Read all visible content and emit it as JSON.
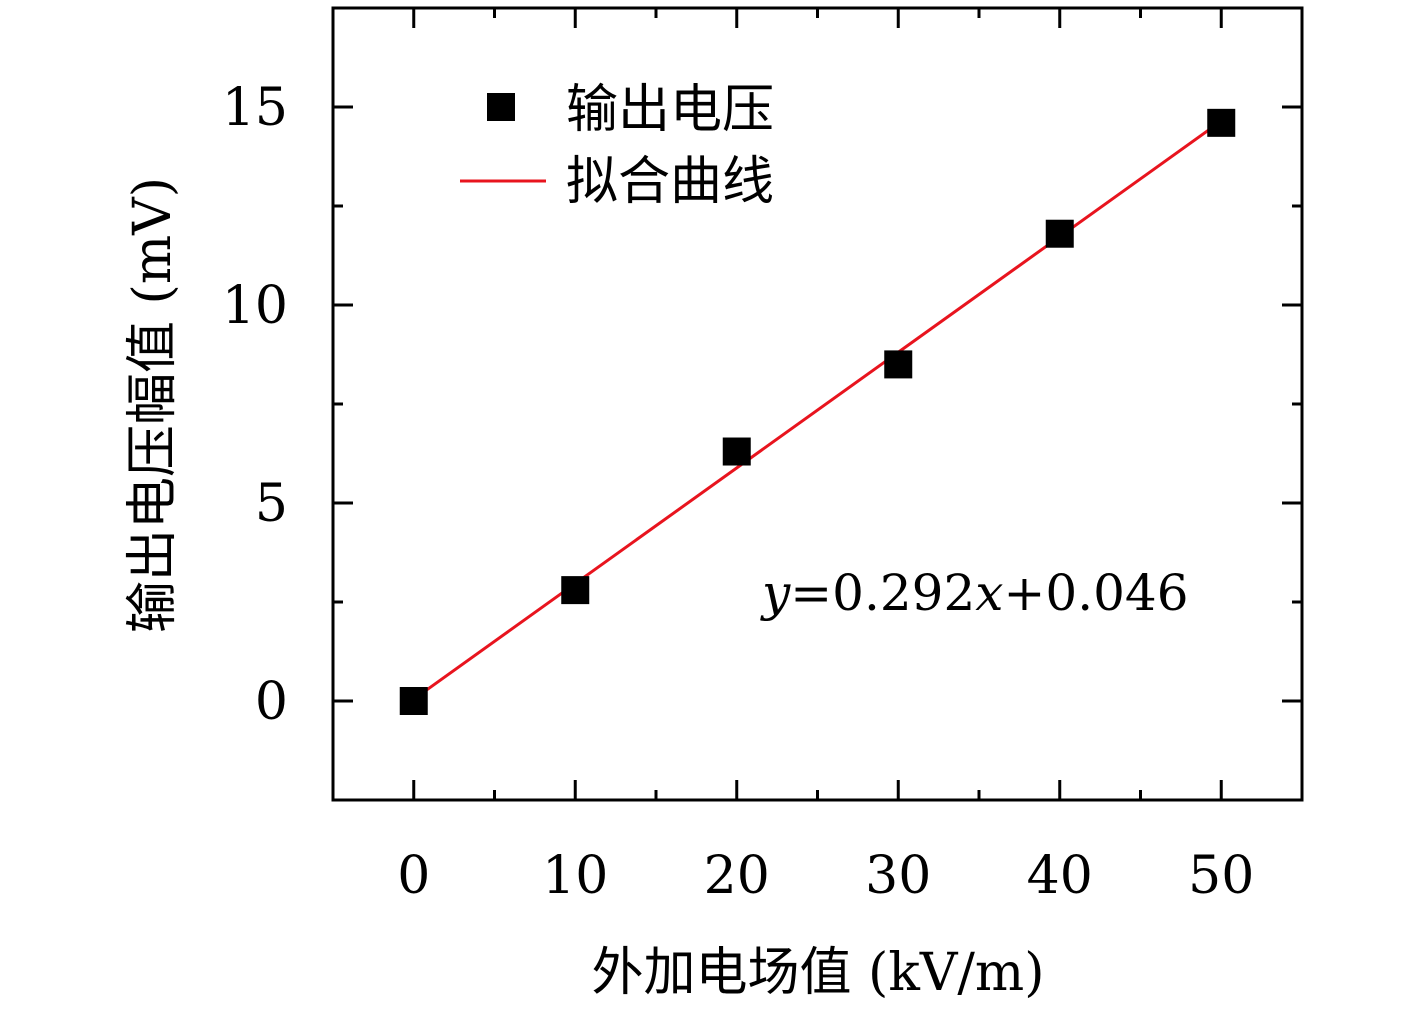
{
  "chart_data": {
    "type": "scatter",
    "xlabel": "外加电场值 (kV/m)",
    "ylabel": "输出电压幅值 (mV)",
    "xlim": [
      -5,
      55
    ],
    "ylim": [
      -2.5,
      17.5
    ],
    "xticks": [
      0,
      10,
      20,
      30,
      40,
      50
    ],
    "xtick_labels": [
      "0",
      "10",
      "20",
      "30",
      "40",
      "50"
    ],
    "yticks": [
      0,
      5,
      10,
      15
    ],
    "ytick_labels": [
      "0",
      "5",
      "10",
      "15"
    ],
    "x_minor_step": 5,
    "y_minor_step": 2.5,
    "grid": false,
    "legend_position": "top-left",
    "series": [
      {
        "name": "输出电压",
        "kind": "scatter",
        "marker": "square",
        "color": "#000000",
        "x": [
          0,
          10,
          20,
          30,
          40,
          50
        ],
        "y": [
          0.0,
          2.8,
          6.3,
          8.5,
          11.8,
          14.6
        ]
      },
      {
        "name": "拟合曲线",
        "kind": "line",
        "color": "#e8141e",
        "slope": 0.292,
        "intercept": 0.046,
        "x": [
          0,
          50
        ],
        "y": [
          0.046,
          14.646
        ]
      }
    ],
    "annotation": {
      "y_var": "y",
      "eq": "=0.292",
      "x_var": "x",
      "rest": "+0.046"
    }
  }
}
